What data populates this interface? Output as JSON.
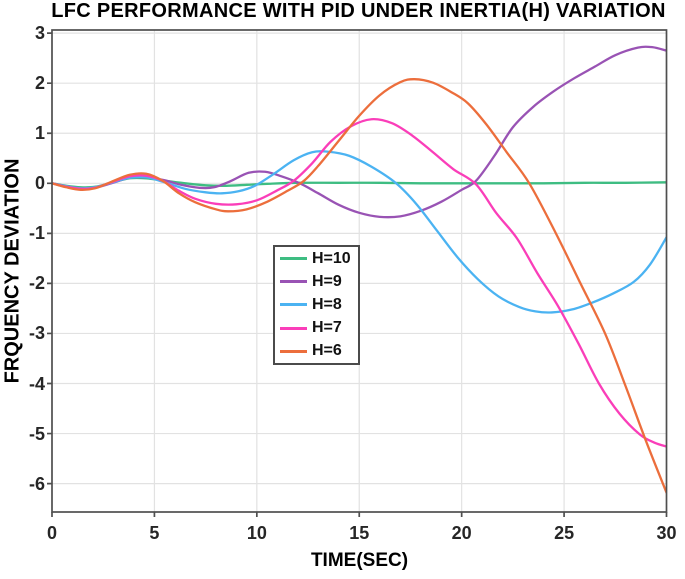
{
  "figure": {
    "background": "#ffffff",
    "grid_color": "#e2e2e2",
    "axis_color": "#4f4f4f",
    "tick_label_color": "#262626"
  },
  "chart_data": {
    "type": "line",
    "title": "LFC PERFORMANCE WITH PID UNDER INERTIA(H) VARIATION",
    "xlabel": "TIME(SEC)",
    "ylabel": "FRQUENCY DEVIATION",
    "xlim": [
      0,
      30
    ],
    "ylim": [
      -6.55,
      3.07
    ],
    "grid": true,
    "legend_position": "inside-left-center",
    "x_ticks": [
      0,
      5,
      10,
      15,
      20,
      25,
      30
    ],
    "y_ticks": [
      3,
      2,
      1,
      0,
      -1,
      -2,
      -3,
      -4,
      -5,
      -6
    ],
    "x_tick_labels": [
      "0",
      "5",
      "10",
      "15",
      "20",
      "25",
      "30"
    ],
    "y_tick_labels": [
      "3",
      "2",
      "1",
      "0",
      "-1",
      "-2",
      "-3",
      "-4",
      "-5",
      "-6"
    ],
    "series": [
      {
        "name": "H=10",
        "color": "#3ebd82",
        "points": [
          [
            0,
            0
          ],
          [
            0.7,
            -0.05
          ],
          [
            1.4,
            -0.08
          ],
          [
            2.1,
            -0.07
          ],
          [
            2.9,
            0.01
          ],
          [
            3.8,
            0.1
          ],
          [
            4.6,
            0.1
          ],
          [
            5.5,
            0.05
          ],
          [
            6.5,
            0
          ],
          [
            7.5,
            -0.04
          ],
          [
            8.5,
            -0.05
          ],
          [
            9.5,
            -0.03
          ],
          [
            10.5,
            -0.01
          ],
          [
            12,
            0.01
          ],
          [
            14,
            0.01
          ],
          [
            16,
            0.01
          ],
          [
            18,
            0
          ],
          [
            20,
            0
          ],
          [
            22,
            0
          ],
          [
            24,
            0
          ],
          [
            26,
            0.01
          ],
          [
            28,
            0.01
          ],
          [
            30,
            0.02
          ]
        ]
      },
      {
        "name": "H=9",
        "color": "#9953b4",
        "points": [
          [
            0,
            0
          ],
          [
            0.7,
            -0.06
          ],
          [
            1.4,
            -0.1
          ],
          [
            2.1,
            -0.09
          ],
          [
            2.9,
            0
          ],
          [
            3.8,
            0.11
          ],
          [
            4.6,
            0.12
          ],
          [
            5.5,
            0.06
          ],
          [
            6.3,
            -0.03
          ],
          [
            7.2,
            -0.09
          ],
          [
            7.9,
            -0.08
          ],
          [
            8.7,
            0.04
          ],
          [
            9.6,
            0.21
          ],
          [
            10.4,
            0.23
          ],
          [
            11.2,
            0.14
          ],
          [
            12.1,
            0
          ],
          [
            13,
            -0.2
          ],
          [
            14,
            -0.43
          ],
          [
            15,
            -0.59
          ],
          [
            16,
            -0.67
          ],
          [
            17,
            -0.66
          ],
          [
            18,
            -0.55
          ],
          [
            19,
            -0.37
          ],
          [
            20,
            -0.13
          ],
          [
            20.7,
            0.05
          ],
          [
            21.6,
            0.55
          ],
          [
            22.5,
            1.12
          ],
          [
            23.5,
            1.53
          ],
          [
            24.5,
            1.84
          ],
          [
            25.5,
            2.1
          ],
          [
            26.5,
            2.33
          ],
          [
            27.5,
            2.56
          ],
          [
            28.6,
            2.71
          ],
          [
            29.3,
            2.72
          ],
          [
            30,
            2.65
          ]
        ]
      },
      {
        "name": "H=8",
        "color": "#4bb3f2",
        "points": [
          [
            0,
            0
          ],
          [
            0.7,
            -0.06
          ],
          [
            1.4,
            -0.1
          ],
          [
            2.1,
            -0.08
          ],
          [
            2.9,
            0.01
          ],
          [
            3.8,
            0.11
          ],
          [
            4.6,
            0.12
          ],
          [
            5.5,
            0.02
          ],
          [
            6.5,
            -0.11
          ],
          [
            7.5,
            -0.18
          ],
          [
            8.3,
            -0.2
          ],
          [
            9.1,
            -0.16
          ],
          [
            9.9,
            -0.05
          ],
          [
            10.8,
            0.18
          ],
          [
            11.8,
            0.46
          ],
          [
            12.7,
            0.62
          ],
          [
            13.5,
            0.63
          ],
          [
            14.5,
            0.55
          ],
          [
            15.6,
            0.33
          ],
          [
            16.8,
            0
          ],
          [
            17.8,
            -0.42
          ],
          [
            18.8,
            -0.95
          ],
          [
            19.8,
            -1.48
          ],
          [
            20.8,
            -1.92
          ],
          [
            21.8,
            -2.26
          ],
          [
            22.8,
            -2.47
          ],
          [
            23.6,
            -2.56
          ],
          [
            24.4,
            -2.58
          ],
          [
            25.4,
            -2.52
          ],
          [
            26.4,
            -2.38
          ],
          [
            27.4,
            -2.2
          ],
          [
            28.4,
            -1.97
          ],
          [
            29.2,
            -1.62
          ],
          [
            30,
            -1.08
          ]
        ]
      },
      {
        "name": "H=7",
        "color": "#fa3eb9",
        "points": [
          [
            0,
            0
          ],
          [
            0.7,
            -0.07
          ],
          [
            1.4,
            -0.11
          ],
          [
            2.1,
            -0.09
          ],
          [
            2.9,
            0.02
          ],
          [
            3.8,
            0.14
          ],
          [
            4.6,
            0.15
          ],
          [
            5.4,
            0.05
          ],
          [
            6.2,
            -0.15
          ],
          [
            7,
            -0.31
          ],
          [
            8,
            -0.41
          ],
          [
            9,
            -0.42
          ],
          [
            10,
            -0.34
          ],
          [
            11,
            -0.14
          ],
          [
            11.8,
            0.05
          ],
          [
            12.7,
            0.4
          ],
          [
            13.6,
            0.83
          ],
          [
            14.6,
            1.14
          ],
          [
            15.6,
            1.28
          ],
          [
            16.6,
            1.2
          ],
          [
            17.6,
            0.95
          ],
          [
            18.6,
            0.62
          ],
          [
            19.6,
            0.28
          ],
          [
            20.7,
            -0.02
          ],
          [
            21.7,
            -0.6
          ],
          [
            22.7,
            -1.1
          ],
          [
            23.7,
            -1.8
          ],
          [
            24.7,
            -2.45
          ],
          [
            25.7,
            -3.2
          ],
          [
            26.7,
            -4
          ],
          [
            27.7,
            -4.6
          ],
          [
            28.7,
            -5.02
          ],
          [
            29.4,
            -5.18
          ],
          [
            30,
            -5.26
          ]
        ]
      },
      {
        "name": "H=6",
        "color": "#ec6e3c",
        "points": [
          [
            0,
            0
          ],
          [
            0.7,
            -0.08
          ],
          [
            1.4,
            -0.13
          ],
          [
            2.1,
            -0.1
          ],
          [
            2.9,
            0.03
          ],
          [
            3.8,
            0.17
          ],
          [
            4.6,
            0.19
          ],
          [
            5.4,
            0.05
          ],
          [
            6.2,
            -0.2
          ],
          [
            7,
            -0.38
          ],
          [
            8,
            -0.52
          ],
          [
            8.6,
            -0.56
          ],
          [
            9.5,
            -0.52
          ],
          [
            10.5,
            -0.37
          ],
          [
            11.5,
            -0.15
          ],
          [
            12.3,
            0.05
          ],
          [
            13,
            0.35
          ],
          [
            14,
            0.85
          ],
          [
            15,
            1.35
          ],
          [
            16,
            1.76
          ],
          [
            17,
            2.02
          ],
          [
            17.7,
            2.08
          ],
          [
            18.6,
            2.01
          ],
          [
            19.5,
            1.82
          ],
          [
            20.3,
            1.6
          ],
          [
            21.2,
            1.18
          ],
          [
            22.2,
            0.62
          ],
          [
            23.3,
            0
          ],
          [
            24.6,
            -1
          ],
          [
            25.8,
            -2
          ],
          [
            27,
            -3
          ],
          [
            28,
            -4.05
          ],
          [
            29,
            -5.15
          ],
          [
            30,
            -6.18
          ]
        ]
      }
    ]
  }
}
